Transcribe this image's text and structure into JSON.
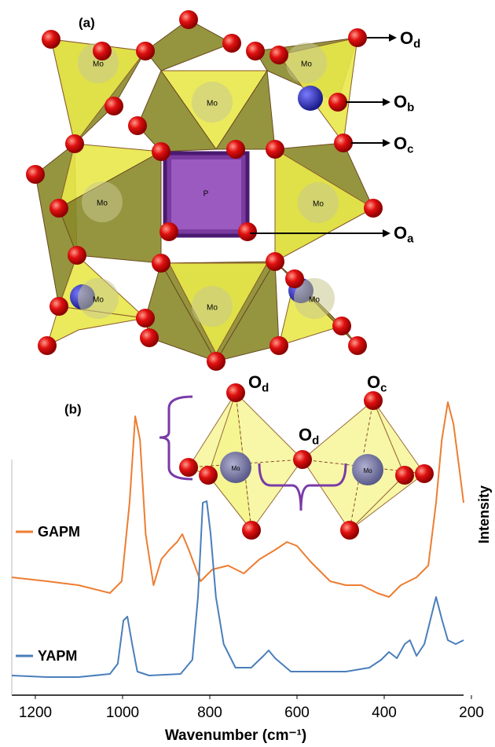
{
  "chart_data": {
    "type": "line",
    "xlabel": "Wavenumber (cm⁻¹)",
    "ylabel": "Intensity",
    "xlim": [
      1254,
      200
    ],
    "xticks": [
      1200,
      1000,
      800,
      600,
      400,
      200
    ],
    "ylim": [
      0,
      400
    ],
    "series": [
      {
        "name": "GAPM",
        "color": "#ed7d31",
        "x": [
          1254,
          1173,
          1101,
          1029,
          1002,
          984,
          971,
          960,
          947,
          929,
          911,
          893,
          875,
          863,
          848,
          821,
          794,
          758,
          722,
          686,
          650,
          623,
          600,
          569,
          524,
          488,
          452,
          416,
          389,
          362,
          326,
          299,
          281,
          268,
          254,
          241,
          227,
          218
        ],
        "values": [
          150,
          145,
          140,
          130,
          145,
          245,
          355,
          325,
          205,
          140,
          173,
          185,
          195,
          205,
          185,
          145,
          160,
          165,
          155,
          173,
          185,
          195,
          190,
          170,
          145,
          140,
          140,
          130,
          125,
          140,
          150,
          165,
          245,
          325,
          373,
          345,
          285,
          245
        ]
      },
      {
        "name": "YAPM",
        "color": "#4a7ebb",
        "x": [
          1254,
          1173,
          1101,
          1029,
          1011,
          998,
          989,
          978,
          966,
          939,
          867,
          840,
          827,
          816,
          807,
          798,
          786,
          768,
          741,
          705,
          677,
          665,
          650,
          614,
          560,
          488,
          434,
          407,
          389,
          371,
          353,
          341,
          326,
          308,
          290,
          281,
          267,
          254,
          236,
          218
        ],
        "values": [
          25,
          23,
          23,
          27,
          40,
          95,
          100,
          65,
          30,
          25,
          27,
          45,
          125,
          245,
          247,
          205,
          125,
          65,
          35,
          35,
          50,
          57,
          47,
          30,
          30,
          30,
          35,
          45,
          55,
          47,
          65,
          70,
          50,
          65,
          105,
          125,
          95,
          70,
          65,
          70
        ]
      }
    ]
  },
  "structure_a": {
    "panel_label": "(a)",
    "central_atom": "P",
    "mo_labels": [
      "Mo",
      "Mo",
      "Mo",
      "Mo",
      "Mo",
      "Mo",
      "Mo",
      "Mo"
    ],
    "oxygen_labels": [
      {
        "symbol": "O",
        "subscript": "d"
      },
      {
        "symbol": "O",
        "subscript": "b"
      },
      {
        "symbol": "O",
        "subscript": "c"
      },
      {
        "symbol": "O",
        "subscript": "a"
      }
    ]
  },
  "structure_b": {
    "panel_label": "(b)",
    "mo_labels": [
      "Mo",
      "Mo"
    ],
    "oxygen_labels": [
      {
        "symbol": "O",
        "subscript": "d"
      },
      {
        "symbol": "O",
        "subscript": "c"
      },
      {
        "symbol": "O",
        "subscript": "d"
      }
    ]
  }
}
